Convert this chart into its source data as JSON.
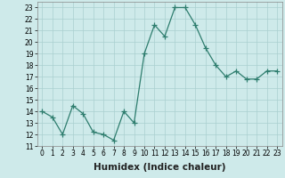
{
  "x": [
    0,
    1,
    2,
    3,
    4,
    5,
    6,
    7,
    8,
    9,
    10,
    11,
    12,
    13,
    14,
    15,
    16,
    17,
    18,
    19,
    20,
    21,
    22,
    23
  ],
  "y": [
    14,
    13.5,
    12,
    14.5,
    13.8,
    12.2,
    12,
    11.5,
    14,
    13,
    19,
    21.5,
    20.5,
    23,
    23,
    21.5,
    19.5,
    18,
    17,
    17.5,
    16.8,
    16.8,
    17.5,
    17.5
  ],
  "line_color": "#2e7d6e",
  "marker": "+",
  "marker_size": 4,
  "bg_color": "#ceeaea",
  "grid_color": "#aacfcf",
  "xlabel": "Humidex (Indice chaleur)",
  "ylim": [
    11,
    23.5
  ],
  "xlim": [
    -0.5,
    23.5
  ],
  "yticks": [
    11,
    12,
    13,
    14,
    15,
    16,
    17,
    18,
    19,
    20,
    21,
    22,
    23
  ],
  "xticks": [
    0,
    1,
    2,
    3,
    4,
    5,
    6,
    7,
    8,
    9,
    10,
    11,
    12,
    13,
    14,
    15,
    16,
    17,
    18,
    19,
    20,
    21,
    22,
    23
  ],
  "tick_fontsize": 5.5,
  "xlabel_fontsize": 7.5
}
